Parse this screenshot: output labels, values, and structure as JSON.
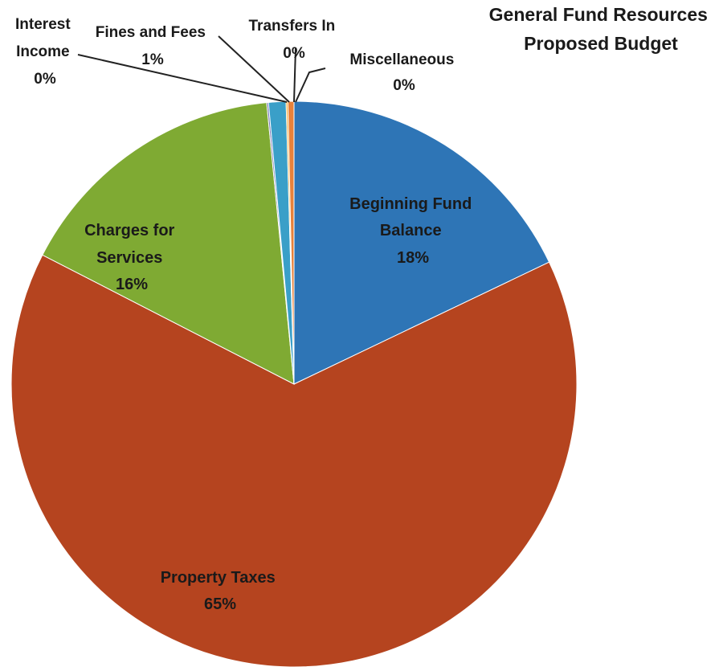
{
  "chart_data": {
    "type": "pie",
    "title": [
      "General Fund Resources",
      "Proposed Budget"
    ],
    "slices": [
      {
        "name": "Beginning Fund Balance",
        "value": 18,
        "label_text": "18%",
        "color": "#2e75b6"
      },
      {
        "name": "Property Taxes",
        "value": 65,
        "label_text": "65%",
        "color": "#b5441f"
      },
      {
        "name": "Charges for Services",
        "value": 16,
        "label_text": "16%",
        "color": "#7faa33"
      },
      {
        "name": "Interest Income",
        "value": 0.1,
        "label_text": "0%",
        "color": "#6f6fb0"
      },
      {
        "name": "Fines and Fees",
        "value": 1,
        "label_text": "1%",
        "color": "#3a9fc8"
      },
      {
        "name": "Transfers In",
        "value": 0.1,
        "label_text": "0%",
        "color": "#f5a623"
      },
      {
        "name": "Miscellaneous",
        "value": 0.35,
        "label_text": "0%",
        "color": "#e8813a"
      }
    ]
  }
}
